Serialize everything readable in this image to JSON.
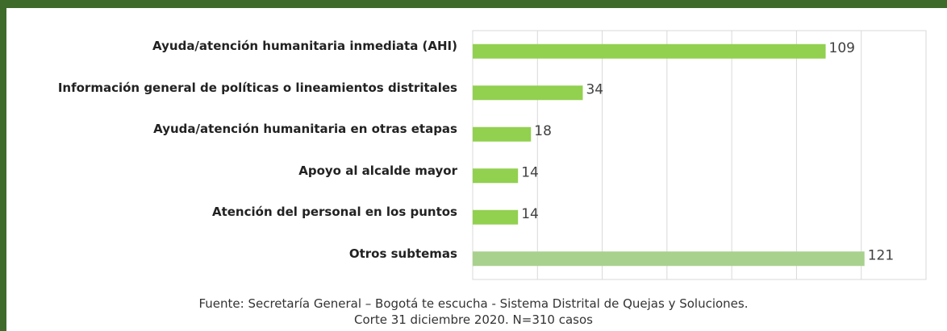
{
  "chart_data": {
    "type": "bar",
    "orientation": "horizontal",
    "categories": [
      "Ayuda/atención humanitaria inmediata (AHI)",
      "Información general de políticas o lineamientos distritales",
      "Ayuda/atención  humanitaria en otras etapas",
      "Apoyo al alcalde mayor",
      "Atención del personal en los puntos",
      "Otros subtemas"
    ],
    "values": [
      109,
      34,
      18,
      14,
      14,
      121
    ],
    "colors": [
      "#92d050",
      "#92d050",
      "#92d050",
      "#92d050",
      "#92d050",
      "#a9d18e"
    ],
    "xlim": [
      0,
      140
    ],
    "xticks": [
      0,
      20,
      40,
      60,
      80,
      100,
      120,
      140
    ],
    "grid": true,
    "notes": [
      "Fuente: Secretaría General – Bogotá te escucha - Sistema Distrital de Quejas y Soluciones.",
      "Corte 31 diciembre 2020. N=310 casos"
    ]
  }
}
